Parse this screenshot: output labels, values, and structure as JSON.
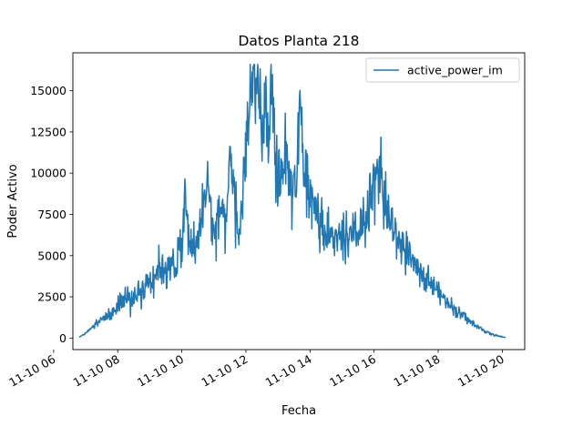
{
  "chart_data": {
    "type": "line",
    "title": "Datos Planta 218",
    "xlabel": "Fecha",
    "ylabel": "Poder Activo",
    "x_unit": "hours (11-10)",
    "xlim": [
      6.6,
      20.7
    ],
    "ylim": [
      -700,
      17300
    ],
    "grid": false,
    "legend_position": "top-right",
    "x_ticks": [
      {
        "value": 6,
        "label": "11-10 06"
      },
      {
        "value": 8,
        "label": "11-10 08"
      },
      {
        "value": 10,
        "label": "11-10 10"
      },
      {
        "value": 12,
        "label": "11-10 12"
      },
      {
        "value": 14,
        "label": "11-10 14"
      },
      {
        "value": 16,
        "label": "11-10 16"
      },
      {
        "value": 18,
        "label": "11-10 18"
      },
      {
        "value": 20,
        "label": "11-10 20"
      }
    ],
    "y_ticks": [
      {
        "value": 0,
        "label": "0"
      },
      {
        "value": 2500,
        "label": "2500"
      },
      {
        "value": 5000,
        "label": "5000"
      },
      {
        "value": 7500,
        "label": "7500"
      },
      {
        "value": 10000,
        "label": "10000"
      },
      {
        "value": 12500,
        "label": "12500"
      },
      {
        "value": 15000,
        "label": "15000"
      }
    ],
    "series": [
      {
        "name": "active_power_im",
        "color": "#1f77b4",
        "x": [
          6.8,
          7.0,
          7.2,
          7.4,
          7.6,
          7.8,
          8.0,
          8.2,
          8.4,
          8.6,
          8.8,
          9.0,
          9.2,
          9.4,
          9.6,
          9.8,
          10.0,
          10.1,
          10.2,
          10.4,
          10.6,
          10.8,
          11.0,
          11.2,
          11.4,
          11.5,
          11.7,
          11.8,
          12.0,
          12.2,
          12.25,
          12.3,
          12.4,
          12.5,
          12.6,
          12.7,
          12.8,
          12.9,
          13.0,
          13.2,
          13.4,
          13.6,
          13.7,
          13.8,
          13.9,
          14.0,
          14.2,
          14.4,
          14.6,
          14.8,
          15.0,
          15.2,
          15.4,
          15.6,
          15.8,
          16.0,
          16.1,
          16.2,
          16.3,
          16.4,
          16.6,
          16.8,
          17.0,
          17.2,
          17.4,
          17.6,
          17.8,
          18.0,
          18.2,
          18.4,
          18.6,
          18.8,
          19.0,
          19.2,
          19.4,
          19.6,
          19.8,
          20.0,
          20.1
        ],
        "y": [
          50,
          300,
          700,
          1000,
          1300,
          1400,
          2000,
          2400,
          2300,
          2700,
          3100,
          3600,
          4000,
          4400,
          4300,
          4400,
          5500,
          8700,
          6300,
          5200,
          6800,
          9800,
          6200,
          8000,
          6500,
          11500,
          7400,
          6000,
          11500,
          15200,
          16500,
          15300,
          14300,
          12000,
          13800,
          12400,
          14800,
          10500,
          9200,
          11000,
          9300,
          9500,
          16000,
          9800,
          10200,
          9000,
          8000,
          6500,
          6200,
          6000,
          5800,
          6200,
          6000,
          6500,
          7000,
          9000,
          11000,
          9800,
          8500,
          7500,
          6500,
          5800,
          5200,
          4500,
          4200,
          3800,
          3300,
          2800,
          2400,
          2000,
          1600,
          1300,
          1000,
          700,
          500,
          300,
          150,
          80,
          40
        ],
        "noise": [
          0,
          80,
          200,
          300,
          500,
          700,
          900,
          1100,
          1100,
          1200,
          1300,
          1400,
          1500,
          1600,
          1500,
          1800,
          2600,
          2000,
          2300,
          1900,
          2000,
          2800,
          2200,
          2600,
          1800,
          3000,
          2500,
          1800,
          3600,
          3200,
          2800,
          3000,
          3200,
          3500,
          3600,
          3600,
          3400,
          3200,
          3000,
          3200,
          3000,
          3200,
          2800,
          3000,
          3200,
          2600,
          2200,
          1900,
          1800,
          1700,
          1700,
          1700,
          1700,
          1800,
          2200,
          2600,
          2800,
          2600,
          2400,
          2200,
          1900,
          1700,
          1500,
          1300,
          1100,
          950,
          850,
          750,
          650,
          550,
          450,
          350,
          280,
          220,
          160,
          110,
          70,
          40,
          20
        ]
      }
    ]
  }
}
